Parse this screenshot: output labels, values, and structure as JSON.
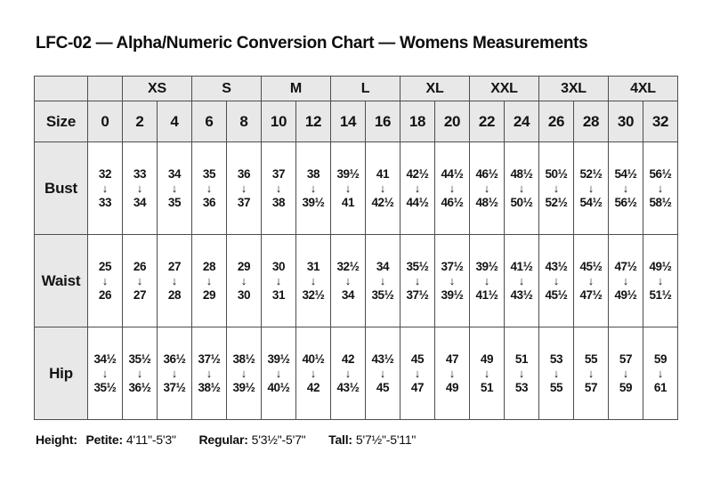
{
  "title": "LFC-02 — Alpha/Numeric Conversion Chart — Womens Measurements",
  "colors": {
    "cell_gray": "#e8e8e8",
    "border": "#4d4d4d",
    "text": "#131313",
    "background": "#ffffff"
  },
  "table": {
    "size_label": "Size",
    "alpha_groups": [
      "XS",
      "S",
      "M",
      "L",
      "XL",
      "XXL",
      "3XL",
      "4XL"
    ],
    "sizes": [
      "0",
      "2",
      "4",
      "6",
      "8",
      "10",
      "12",
      "14",
      "16",
      "18",
      "20",
      "22",
      "24",
      "26",
      "28",
      "30",
      "32"
    ],
    "arrow": "↓",
    "rows": [
      {
        "label": "Bust",
        "ranges": [
          [
            "32",
            "33"
          ],
          [
            "33",
            "34"
          ],
          [
            "34",
            "35"
          ],
          [
            "35",
            "36"
          ],
          [
            "36",
            "37"
          ],
          [
            "37",
            "38"
          ],
          [
            "38",
            "39½"
          ],
          [
            "39½",
            "41"
          ],
          [
            "41",
            "42½"
          ],
          [
            "42½",
            "44½"
          ],
          [
            "44½",
            "46½"
          ],
          [
            "46½",
            "48½"
          ],
          [
            "48½",
            "50½"
          ],
          [
            "50½",
            "52½"
          ],
          [
            "52½",
            "54½"
          ],
          [
            "54½",
            "56½"
          ],
          [
            "56½",
            "58½"
          ]
        ]
      },
      {
        "label": "Waist",
        "ranges": [
          [
            "25",
            "26"
          ],
          [
            "26",
            "27"
          ],
          [
            "27",
            "28"
          ],
          [
            "28",
            "29"
          ],
          [
            "29",
            "30"
          ],
          [
            "30",
            "31"
          ],
          [
            "31",
            "32½"
          ],
          [
            "32½",
            "34"
          ],
          [
            "34",
            "35½"
          ],
          [
            "35½",
            "37½"
          ],
          [
            "37½",
            "39½"
          ],
          [
            "39½",
            "41½"
          ],
          [
            "41½",
            "43½"
          ],
          [
            "43½",
            "45½"
          ],
          [
            "45½",
            "47½"
          ],
          [
            "47½",
            "49½"
          ],
          [
            "49½",
            "51½"
          ]
        ]
      },
      {
        "label": "Hip",
        "ranges": [
          [
            "34½",
            "35½"
          ],
          [
            "35½",
            "36½"
          ],
          [
            "36½",
            "37½"
          ],
          [
            "37½",
            "38½"
          ],
          [
            "38½",
            "39½"
          ],
          [
            "39½",
            "40½"
          ],
          [
            "40½",
            "42"
          ],
          [
            "42",
            "43½"
          ],
          [
            "43½",
            "45"
          ],
          [
            "45",
            "47"
          ],
          [
            "47",
            "49"
          ],
          [
            "49",
            "51"
          ],
          [
            "51",
            "53"
          ],
          [
            "53",
            "55"
          ],
          [
            "55",
            "57"
          ],
          [
            "57",
            "59"
          ],
          [
            "59",
            "61"
          ]
        ]
      }
    ]
  },
  "footer": {
    "height_label": "Height:",
    "segments": [
      {
        "label": "Petite:",
        "value": "4'11\"-5'3\""
      },
      {
        "label": "Regular:",
        "value": "5'3½\"-5'7\""
      },
      {
        "label": "Tall:",
        "value": "5'7½\"-5'11\""
      }
    ]
  }
}
